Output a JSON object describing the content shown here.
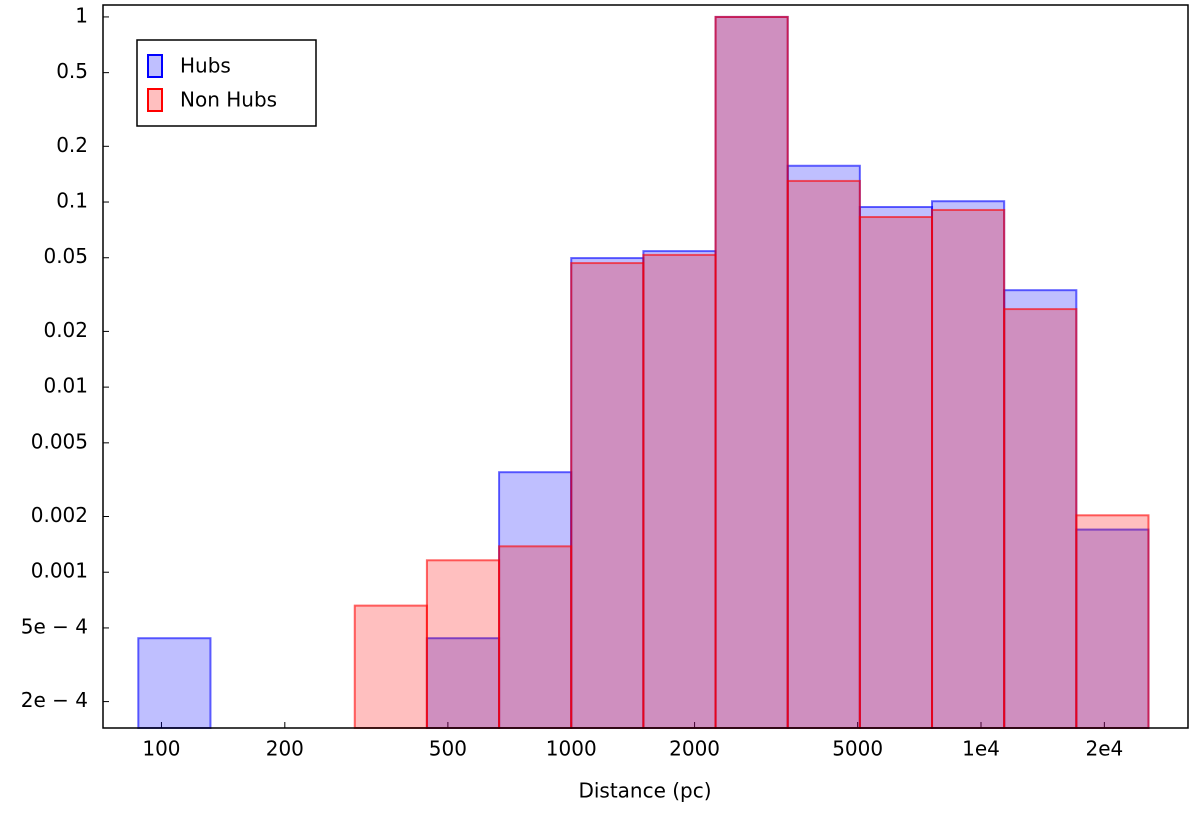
{
  "chart_data": {
    "type": "histogram",
    "xlabel": "Distance (pc)",
    "bins": [
      87.8,
      131.7,
      197.5,
      296.3,
      444.4,
      666.7,
      1000,
      1500,
      2250,
      3375,
      5062.5,
      7593.75,
      11390.6,
      17085.9,
      25628.9
    ],
    "series": [
      {
        "name": "Hubs",
        "color": "#0000ff",
        "values": [
          0.00044,
          null,
          null,
          null,
          0.00044,
          0.00347,
          0.0498,
          0.0543,
          1,
          0.157,
          0.094,
          0.101,
          0.0334,
          0.0017
        ]
      },
      {
        "name": "Non Hubs",
        "color": "#ff0000",
        "values": [
          null,
          null,
          null,
          0.00066,
          0.00116,
          0.00138,
          0.0468,
          0.0518,
          1,
          0.13,
          0.083,
          0.0906,
          0.0264,
          0.00203
        ]
      }
    ],
    "xscale": "log",
    "yscale": "log",
    "xlim": [
      72,
      32000
    ],
    "ylim": [
      0.000144,
      1.16
    ],
    "xticks": [
      100,
      200,
      500,
      1000,
      2000,
      5000,
      {
        "value": 10000,
        "label": "1e4"
      },
      {
        "value": 20000,
        "label": "2e4"
      }
    ],
    "yticks": [
      1,
      0.5,
      0.2,
      0.1,
      0.05,
      0.02,
      0.01,
      0.005,
      0.002,
      0.001,
      {
        "value": 0.0005,
        "label": "5e − 4"
      },
      {
        "value": 0.0002,
        "label": "2e − 4"
      }
    ],
    "legend": "upper left"
  }
}
